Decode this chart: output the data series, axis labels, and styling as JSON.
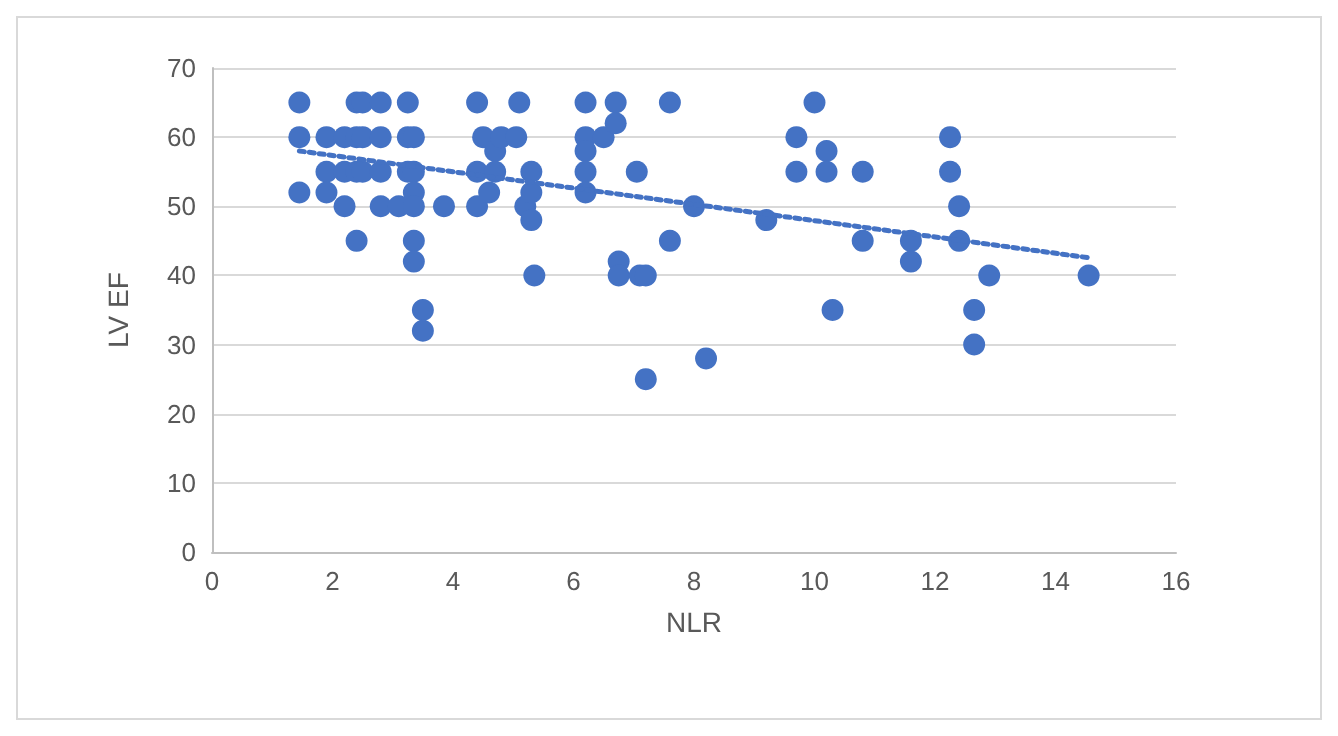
{
  "chart_data": {
    "type": "scatter",
    "xlabel": "NLR",
    "ylabel": "LV EF",
    "xlim": [
      0,
      16
    ],
    "xticks": [
      0,
      2,
      4,
      6,
      8,
      10,
      12,
      14,
      16
    ],
    "ylim": [
      0,
      70
    ],
    "yticks": [
      0,
      10,
      20,
      30,
      40,
      50,
      60,
      70
    ],
    "grid": "y",
    "marker": "circle",
    "series": [
      {
        "color": "#4472c4",
        "x": [
          1.45,
          1.45,
          1.45,
          1.9,
          1.9,
          1.9,
          2.2,
          2.2,
          2.2,
          2.4,
          2.4,
          2.4,
          2.4,
          2.5,
          2.5,
          2.5,
          2.8,
          2.8,
          2.8,
          2.8,
          3.1,
          3.25,
          3.25,
          3.25,
          3.35,
          3.35,
          3.35,
          3.35,
          3.35,
          3.35,
          3.5,
          3.5,
          3.85,
          4.4,
          4.4,
          4.4,
          4.5,
          4.6,
          4.7,
          4.7,
          4.8,
          5.05,
          5.1,
          5.2,
          5.3,
          5.3,
          5.3,
          5.35,
          6.2,
          6.2,
          6.2,
          6.2,
          6.2,
          6.5,
          6.7,
          6.7,
          6.75,
          6.75,
          7.05,
          7.1,
          7.2,
          7.2,
          7.6,
          7.6,
          8.0,
          8.2,
          9.2,
          9.7,
          9.7,
          10.0,
          10.2,
          10.2,
          10.3,
          10.8,
          10.8,
          11.6,
          11.6,
          12.25,
          12.25,
          12.4,
          12.4,
          12.65,
          12.65,
          12.9,
          14.55
        ],
        "values": [
          65,
          60,
          52,
          60,
          55,
          52,
          60,
          55,
          50,
          65,
          60,
          55,
          45,
          65,
          60,
          55,
          65,
          60,
          55,
          50,
          50,
          65,
          60,
          55,
          60,
          55,
          52,
          50,
          45,
          42,
          35,
          32,
          50,
          65,
          55,
          50,
          60,
          52,
          58,
          55,
          60,
          60,
          65,
          50,
          55,
          52,
          48,
          40,
          65,
          60,
          58,
          55,
          52,
          60,
          65,
          62,
          42,
          40,
          55,
          40,
          40,
          25,
          65,
          45,
          50,
          28,
          48,
          60,
          55,
          65,
          58,
          55,
          35,
          55,
          45,
          45,
          42,
          60,
          55,
          50,
          45,
          35,
          30,
          40,
          40
        ]
      },
      {
        "type": "line",
        "color": "#4472c4",
        "line_style": "dotted",
        "marker": "none",
        "x": [
          1.45,
          14.6
        ],
        "values": [
          58,
          42.5
        ]
      }
    ]
  }
}
